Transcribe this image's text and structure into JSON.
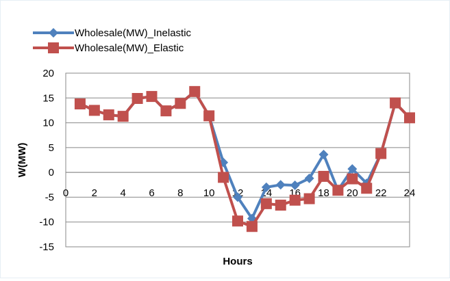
{
  "chart_data": {
    "type": "line",
    "title": "",
    "xlabel": "Hours",
    "ylabel": "W(MW)",
    "xlim": [
      0,
      24
    ],
    "ylim": [
      -15,
      20
    ],
    "xticks": [
      0,
      2,
      4,
      6,
      8,
      10,
      12,
      14,
      16,
      18,
      20,
      22,
      24
    ],
    "yticks": [
      -15,
      -10,
      -5,
      0,
      5,
      10,
      15,
      20
    ],
    "xtick_labels": [
      "0",
      "2",
      "4",
      "6",
      "8",
      "10",
      "12",
      "14",
      "16",
      "18",
      "20",
      "22",
      "24"
    ],
    "ytick_labels": [
      "-15",
      "-10",
      "-5",
      "0",
      "5",
      "10",
      "15",
      "20"
    ],
    "grid": "horizontal",
    "legend_position": "top-left",
    "x": [
      1,
      2,
      3,
      4,
      5,
      6,
      7,
      8,
      9,
      10,
      11,
      12,
      13,
      14,
      15,
      16,
      17,
      18,
      19,
      20,
      21,
      22,
      23,
      24
    ],
    "series": [
      {
        "name": "Wholesale(MW)_Inelastic",
        "color": "#4f81bd",
        "marker": "diamond",
        "values": [
          13.8,
          12.5,
          11.6,
          11.3,
          14.9,
          15.3,
          12.4,
          13.9,
          16.3,
          11.4,
          2.0,
          -5.0,
          -9.3,
          -3.0,
          -2.5,
          -2.6,
          -1.2,
          3.6,
          -3.6,
          0.7,
          -2.2,
          3.8,
          14.0,
          11.0
        ]
      },
      {
        "name": "Wholesale(MW)_Elastic",
        "color": "#c0504d",
        "marker": "square",
        "values": [
          13.8,
          12.5,
          11.6,
          11.3,
          14.9,
          15.3,
          12.4,
          13.9,
          16.3,
          11.4,
          -1.0,
          -9.8,
          -10.9,
          -6.3,
          -6.6,
          -5.6,
          -5.3,
          -0.8,
          -3.6,
          -1.3,
          -3.2,
          3.8,
          14.0,
          11.0
        ]
      }
    ]
  }
}
